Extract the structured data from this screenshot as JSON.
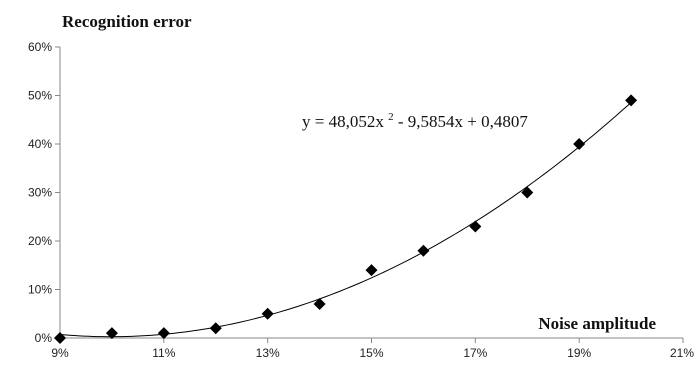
{
  "chart_data": {
    "type": "scatter",
    "ylabel": "Recognition error",
    "xlabel": "Noise amplitude",
    "xlim": [
      0.09,
      0.21
    ],
    "ylim": [
      0,
      0.6
    ],
    "x_ticks": [
      0.09,
      0.11,
      0.13,
      0.15,
      0.17,
      0.19,
      0.21
    ],
    "x_tick_labels": [
      "9%",
      "11%",
      "13%",
      "15%",
      "17%",
      "19%",
      "21%"
    ],
    "y_ticks": [
      0,
      0.1,
      0.2,
      0.3,
      0.4,
      0.5,
      0.6
    ],
    "y_tick_labels": [
      "0%",
      "10%",
      "20%",
      "30%",
      "40%",
      "50%",
      "60%"
    ],
    "grid": false,
    "series": [
      {
        "marker": "diamond",
        "color": "#000000",
        "x": [
          0.09,
          0.1,
          0.11,
          0.12,
          0.13,
          0.14,
          0.15,
          0.16,
          0.17,
          0.18,
          0.19,
          0.2
        ],
        "y": [
          0.0,
          0.01,
          0.01,
          0.02,
          0.05,
          0.07,
          0.14,
          0.18,
          0.23,
          0.3,
          0.4,
          0.49
        ]
      }
    ],
    "trendline": {
      "type": "polynomial",
      "coefficients": [
        48.052,
        -9.5854,
        0.4807
      ],
      "equation": {
        "main": "y = 48,052x",
        "superscript": "2",
        "rest": " - 9,5854x + 0,4807"
      },
      "color": "#000000"
    }
  }
}
